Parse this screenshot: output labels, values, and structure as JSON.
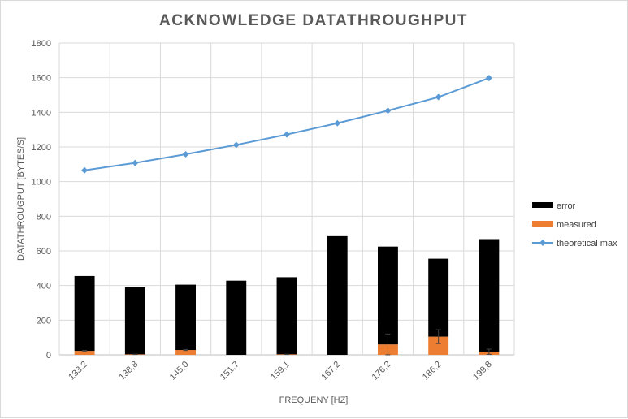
{
  "chart_data": {
    "type": "bar",
    "title": "ACKNOWLEDGE DATATHROUGHPUT",
    "xlabel": "FREQUENY [HZ]",
    "ylabel": "DATATHROUGPUT [BYTES/S]",
    "ylim": [
      0,
      1800
    ],
    "yticks": [
      "0",
      "200",
      "400",
      "600",
      "800",
      "1000",
      "1200",
      "1400",
      "1600",
      "1800"
    ],
    "categories": [
      "133,2",
      "138,8",
      "145,0",
      "151,7",
      "159,1",
      "167,2",
      "176,2",
      "186,2",
      "199,8"
    ],
    "stacked": true,
    "grid": true,
    "legend_position": "right",
    "series": [
      {
        "name": "error",
        "kind": "bar",
        "color": "#000000",
        "values": [
          432,
          388,
          377,
          428,
          445,
          685,
          565,
          450,
          650
        ]
      },
      {
        "name": "measured",
        "kind": "bar",
        "color": "#ed7d31",
        "values": [
          23,
          3,
          28,
          0,
          3,
          0,
          60,
          105,
          18
        ],
        "error": [
          3,
          1,
          3,
          0,
          1,
          0,
          60,
          40,
          15
        ]
      },
      {
        "name": "theoretical max",
        "kind": "line",
        "color": "#5b9bd5",
        "marker": "diamond",
        "values": [
          1065,
          1108,
          1158,
          1212,
          1272,
          1337,
          1410,
          1488,
          1598
        ]
      }
    ]
  }
}
